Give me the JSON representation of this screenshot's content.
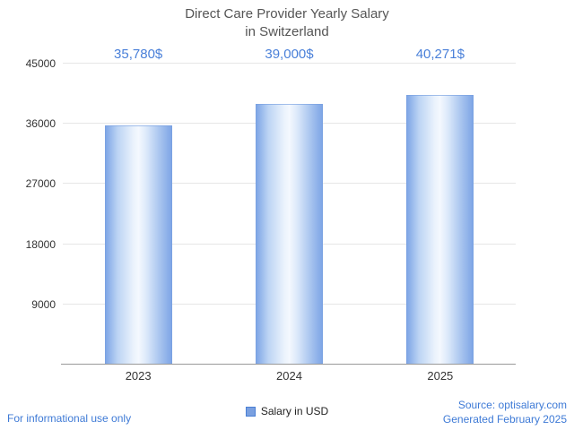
{
  "chart_data": {
    "type": "bar",
    "title": "Direct Care Provider Yearly Salary in Switzerland",
    "title_lines": [
      "Direct Care Provider Yearly Salary",
      "in Switzerland"
    ],
    "categories": [
      "2023",
      "2024",
      "2025"
    ],
    "series": [
      {
        "name": "Salary in USD",
        "values": [
          35780,
          39000,
          40271
        ]
      }
    ],
    "values": [
      35780,
      39000,
      40271
    ],
    "value_labels": [
      "35,780$",
      "39,000$",
      "40,271$"
    ],
    "xlabel": "",
    "ylabel": "",
    "ylim": [
      0,
      45000
    ],
    "yticks": [
      9000,
      18000,
      27000,
      36000,
      45000
    ],
    "ytick_labels": [
      "9000",
      "18000",
      "27000",
      "36000",
      "45000"
    ],
    "grid": true,
    "legend": {
      "label": "Salary in USD",
      "position": "bottom"
    }
  },
  "footer": {
    "disclaimer": "For informational use only",
    "source": "Source: optisalary.com",
    "generated": "Generated February 2025"
  },
  "colors": {
    "accent_text": "#4a80d9",
    "link_text": "#3e7ad6",
    "bar_edge": "#7fa6e6",
    "bar_center": "#f4f8fe",
    "title_text": "#555555",
    "tick_text": "#333333",
    "gridline": "#e6e6e6",
    "axis_line": "#999999"
  }
}
